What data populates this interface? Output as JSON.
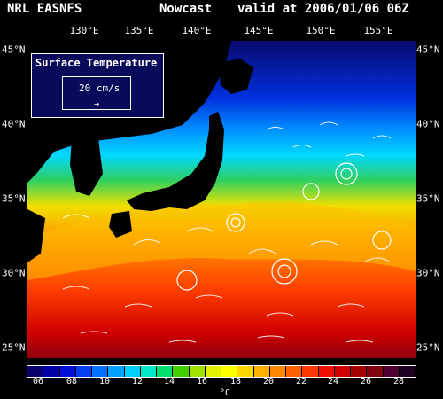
{
  "header": {
    "source": "NRL EASNFS",
    "product": "Nowcast",
    "valid": "valid at 2006/01/06 06Z"
  },
  "lon_labels": [
    "130°E",
    "135°E",
    "140°E",
    "145°E",
    "150°E",
    "155°E"
  ],
  "lat_labels": [
    "45°N",
    "40°N",
    "35°N",
    "30°N",
    "25°N"
  ],
  "inset": {
    "title": "Surface Temperature",
    "vector_label": "20 cm/s"
  },
  "colorbar": {
    "ticks": [
      "06",
      "08",
      "10",
      "12",
      "14",
      "16",
      "18",
      "20",
      "22",
      "24",
      "26",
      "28"
    ],
    "unit": "°C",
    "colors": [
      "#08006b",
      "#0000a8",
      "#0010d8",
      "#0040f0",
      "#0070ff",
      "#00a0ff",
      "#00d0ff",
      "#00e8c8",
      "#00e070",
      "#40d000",
      "#a0e000",
      "#e0f000",
      "#ffff00",
      "#ffd800",
      "#ffb000",
      "#ff8800",
      "#ff6000",
      "#ff3800",
      "#f01000",
      "#d00000",
      "#a80000",
      "#800010",
      "#500030",
      "#200020"
    ]
  }
}
